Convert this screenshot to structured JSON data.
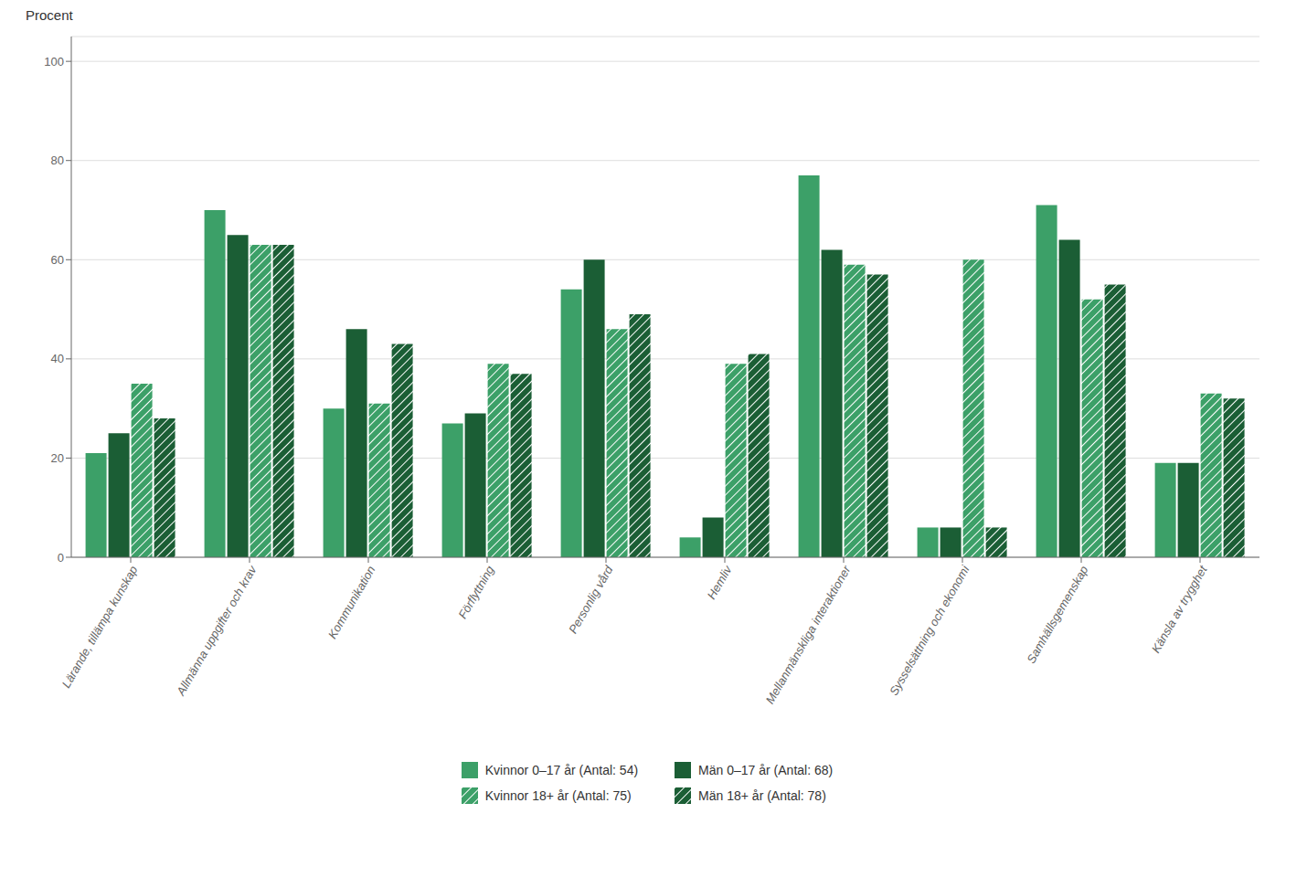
{
  "chart_data": {
    "type": "bar",
    "ylabel": "Procent",
    "categories": [
      "Lärande, tillämpa kunskap",
      "Allmänna uppgifter och krav",
      "Kommunikation",
      "Förflyttning",
      "Personlig vård",
      "Hemliv",
      "Mellanmänskliga interaktioner",
      "Sysselsättning och ekonomi",
      "Samhällsgemenskap",
      "Känsla av trygghet"
    ],
    "series": [
      {
        "name": "Kvinnor 0–17 år (Antal: 54)",
        "color": "#3ca068",
        "values": [
          21,
          70,
          30,
          27,
          54,
          4,
          77,
          6,
          71,
          19
        ]
      },
      {
        "name": "Män 0–17 år (Antal: 68)",
        "color": "#1b5e35",
        "values": [
          25,
          65,
          46,
          29,
          60,
          8,
          62,
          6,
          64,
          19
        ]
      },
      {
        "name": "Kvinnor 18+ år (Antal: 75)",
        "color": "#3ca068",
        "values": [
          35,
          63,
          31,
          39,
          46,
          39,
          59,
          60,
          52,
          33
        ]
      },
      {
        "name": "Män 18+ år (Antal: 78)",
        "color": "#1b5e35",
        "values": [
          28,
          63,
          43,
          37,
          49,
          41,
          57,
          6,
          55,
          32
        ]
      }
    ],
    "ylim": [
      0,
      105
    ],
    "yticks": [
      0,
      20,
      40,
      60,
      80,
      100
    ],
    "grid": true,
    "legend": "bottom"
  }
}
